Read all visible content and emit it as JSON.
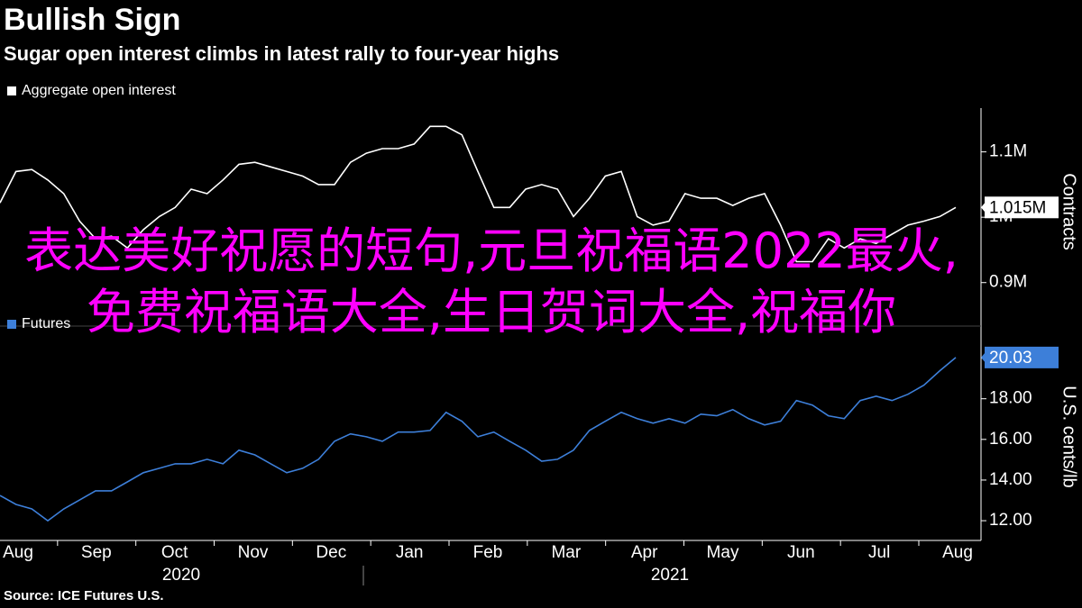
{
  "title": "Bullish Sign",
  "subtitle": "Sugar open interest climbs in latest rally to four-year highs",
  "source": "Source: ICE Futures U.S.",
  "overlay": "表达美好祝愿的短句,元旦祝福语2022最火,免费祝福语大全,生日贺词大全,祝福你",
  "chart_data": [
    {
      "type": "line",
      "axis_title": "Contracts",
      "series": [
        {
          "name": "Aggregate open interest",
          "color": "#ffffff",
          "values": [
            1022000,
            1070000,
            1073000,
            1057000,
            1036000,
            994000,
            967000,
            971000,
            953000,
            981000,
            1001000,
            1015000,
            1043000,
            1036000,
            1057000,
            1081000,
            1084000,
            1077000,
            1070000,
            1063000,
            1050000,
            1050000,
            1084000,
            1098000,
            1105000,
            1105000,
            1112000,
            1139000,
            1139000,
            1126000,
            1070000,
            1015000,
            1015000,
            1043000,
            1050000,
            1043000,
            1001000,
            1029000,
            1063000,
            1070000,
            1001000,
            988000,
            994000,
            1036000,
            1029000,
            1029000,
            1018000,
            1029000,
            1036000,
            988000,
            932000,
            932000,
            967000,
            953000,
            967000,
            960000,
            974000,
            988000,
            994000,
            1001000,
            1015000
          ],
          "end_label": {
            "value": 1015000,
            "label": "1.015M"
          }
        }
      ],
      "ylim": [
        850000,
        1167000
      ],
      "yticks": [
        {
          "value": 900000,
          "label": "0.9M"
        },
        {
          "value": 1000000,
          "label": "1M"
        },
        {
          "value": 1100000,
          "label": "1.1M"
        }
      ]
    },
    {
      "type": "line",
      "axis_title": "U.S. cents/lb",
      "series": [
        {
          "name": "Futures",
          "color": "#3d7fd9",
          "values": [
            13.24,
            12.8,
            12.58,
            12.0,
            12.58,
            13.02,
            13.47,
            13.47,
            13.91,
            14.36,
            14.58,
            14.8,
            14.8,
            15.02,
            14.8,
            15.47,
            15.24,
            14.8,
            14.36,
            14.58,
            15.02,
            15.91,
            16.27,
            16.13,
            15.91,
            16.36,
            16.36,
            16.44,
            17.33,
            16.89,
            16.13,
            16.36,
            15.91,
            15.47,
            14.93,
            15.02,
            15.47,
            16.44,
            16.89,
            17.33,
            17.02,
            16.8,
            17.02,
            16.8,
            17.24,
            17.16,
            17.47,
            17.02,
            16.71,
            16.89,
            17.91,
            17.69,
            17.16,
            17.02,
            17.91,
            18.13,
            17.91,
            18.22,
            18.67,
            19.38,
            20.03
          ],
          "end_label": 20.03
        }
      ],
      "ylim": [
        11.25,
        21.0
      ],
      "yticks": [
        {
          "value": 12,
          "label": "12.00"
        },
        {
          "value": 14,
          "label": "14.00"
        },
        {
          "value": 16,
          "label": "16.00"
        },
        {
          "value": 18,
          "label": "18.00"
        },
        {
          "value": 20,
          "label": "20.00"
        }
      ],
      "x_labels": [
        "Aug",
        "Sep",
        "Oct",
        "Nov",
        "Dec",
        "Jan",
        "Feb",
        "Mar",
        "Apr",
        "May",
        "Jun",
        "Jul",
        "Aug"
      ],
      "years": [
        "2020",
        "2021"
      ]
    }
  ]
}
